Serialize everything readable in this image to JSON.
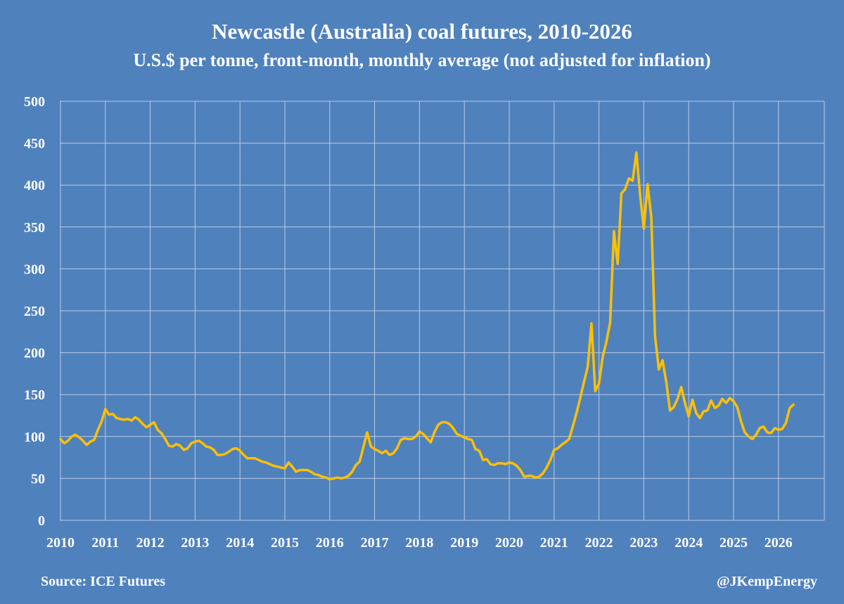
{
  "colors": {
    "background": "#4f81bd",
    "gridline": "#b9cde5",
    "line": "#ffc000",
    "text": "#ffffff"
  },
  "chart_data": {
    "type": "line",
    "title": "Newcastle (Australia) coal futures, 2010-2026",
    "subtitle": "U.S.$ per tonne, front-month, monthly average (not adjusted for inflation)",
    "xlabel": "",
    "ylabel": "",
    "ylim": [
      0,
      500
    ],
    "y_ticks": [
      "0",
      "50",
      "100",
      "150",
      "200",
      "250",
      "300",
      "350",
      "400",
      "450",
      "500"
    ],
    "x_ticks": [
      "2010",
      "2011",
      "2012",
      "2013",
      "2014",
      "2015",
      "2016",
      "2017",
      "2018",
      "2019",
      "2020",
      "2021",
      "2022",
      "2023",
      "2024",
      "2025",
      "2026"
    ],
    "grid": true,
    "series": [
      {
        "name": "Newcastle coal futures",
        "start": "2010-01",
        "frequency": "monthly",
        "values": [
          97,
          92,
          95,
          100,
          102,
          99,
          95,
          90,
          94,
          96,
          108,
          118,
          133,
          126,
          127,
          122,
          121,
          120,
          121,
          119,
          123,
          120,
          115,
          111,
          114,
          117,
          108,
          104,
          97,
          89,
          88,
          91,
          89,
          84,
          86,
          92,
          94,
          95,
          92,
          88,
          87,
          84,
          78,
          78,
          79,
          82,
          85,
          86,
          83,
          78,
          74,
          74,
          74,
          72,
          70,
          69,
          67,
          65,
          64,
          63,
          62,
          69,
          64,
          58,
          60,
          60,
          60,
          58,
          55,
          54,
          52,
          51,
          49,
          50,
          51,
          50,
          51,
          53,
          58,
          66,
          70,
          87,
          105,
          88,
          85,
          83,
          80,
          83,
          78,
          80,
          86,
          96,
          98,
          97,
          97,
          100,
          106,
          103,
          98,
          93,
          105,
          114,
          117,
          117,
          115,
          110,
          103,
          101,
          99,
          97,
          96,
          85,
          83,
          72,
          73,
          67,
          66,
          68,
          68,
          67,
          69,
          68,
          65,
          60,
          52,
          53,
          53,
          51,
          52,
          56,
          63,
          72,
          84,
          86,
          90,
          93,
          97,
          112,
          128,
          146,
          165,
          183,
          235,
          154,
          163,
          195,
          213,
          236,
          345,
          306,
          390,
          395,
          408,
          405,
          439,
          388,
          348,
          401,
          362,
          220,
          180,
          191,
          165,
          131,
          135,
          145,
          159,
          140,
          124,
          144,
          128,
          122,
          130,
          131,
          143,
          134,
          137,
          145,
          140,
          146,
          142,
          135,
          118,
          105,
          100,
          97,
          102,
          110,
          112,
          105,
          104,
          110,
          108,
          109,
          116,
          134,
          138
        ]
      }
    ]
  },
  "footer": {
    "source": "Source: ICE Futures",
    "handle": "@JKempEnergy"
  }
}
